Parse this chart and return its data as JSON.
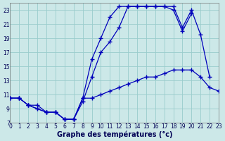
{
  "xlabel": "Graphe des températures (°c)",
  "xlim": [
    0,
    23
  ],
  "ylim": [
    7,
    24
  ],
  "xticks": [
    0,
    1,
    2,
    3,
    4,
    5,
    6,
    7,
    8,
    9,
    10,
    11,
    12,
    13,
    14,
    15,
    16,
    17,
    18,
    19,
    20,
    21,
    22,
    23
  ],
  "yticks": [
    7,
    9,
    11,
    13,
    15,
    17,
    19,
    21,
    23
  ],
  "bg_color": "#cce8e8",
  "line_color": "#0000bb",
  "grid_color": "#99cccc",
  "line1_x": [
    0,
    1,
    2,
    3,
    4,
    5,
    6,
    7,
    8,
    9,
    10,
    11,
    12,
    13,
    14,
    15,
    16,
    17,
    18,
    19,
    20,
    21,
    22,
    23
  ],
  "line1_y": [
    10.5,
    10.5,
    9.5,
    9.5,
    8.5,
    8.5,
    7.5,
    7.5,
    10.5,
    10.5,
    11.0,
    11.5,
    12.0,
    12.5,
    13.0,
    13.5,
    13.5,
    14.0,
    14.5,
    14.5,
    14.5,
    13.5,
    12.0,
    11.5
  ],
  "line2_x": [
    0,
    1,
    2,
    3,
    4,
    5,
    6,
    7,
    8,
    9,
    10,
    11,
    12,
    13,
    14,
    15,
    16,
    17,
    18,
    19,
    20,
    21,
    22,
    23
  ],
  "line2_y": [
    10.5,
    10.5,
    9.5,
    9.0,
    8.5,
    8.5,
    7.5,
    7.5,
    10.0,
    13.5,
    17.0,
    18.5,
    20.5,
    23.5,
    23.5,
    23.5,
    23.5,
    23.5,
    23.5,
    20.5,
    23.0,
    19.5,
    13.5,
    null
  ],
  "line3_x": [
    0,
    1,
    2,
    3,
    4,
    5,
    6,
    7,
    8,
    9,
    10,
    11,
    12,
    13,
    14,
    15,
    16,
    17,
    18,
    19,
    20,
    21,
    22,
    23
  ],
  "line3_y": [
    10.5,
    10.5,
    9.5,
    9.0,
    8.5,
    8.5,
    7.5,
    7.5,
    10.5,
    16.0,
    19.0,
    22.0,
    23.5,
    23.5,
    23.5,
    23.5,
    23.5,
    23.5,
    23.0,
    20.0,
    22.5,
    null,
    null,
    null
  ]
}
